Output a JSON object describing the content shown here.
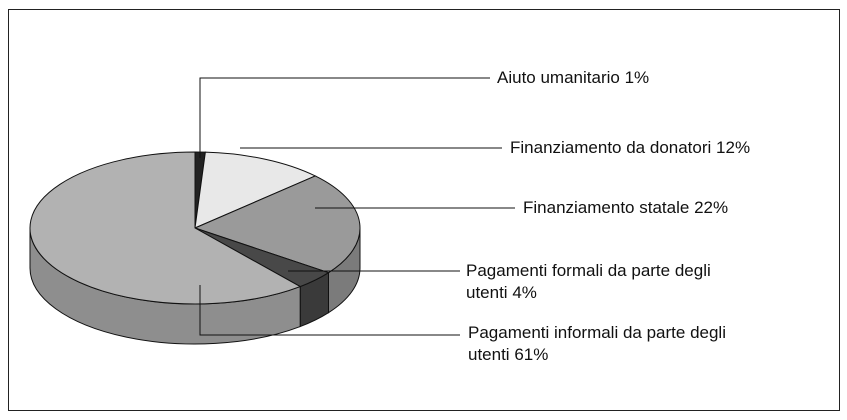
{
  "chart_data": {
    "type": "pie",
    "categories": [
      "Aiuto umanitario",
      "Finanziamento da donatori",
      "Finanziamento statale",
      "Pagamenti formali da parte degli utenti",
      "Pagamenti informali da parte degli utenti"
    ],
    "values": [
      1,
      12,
      22,
      4,
      61
    ],
    "value_labels": [
      "1%",
      "12%",
      "22%",
      "4%",
      "61%"
    ],
    "colors": [
      "#222222",
      "#e8e8e8",
      "#9a9a9a",
      "#484848",
      "#b2b2b2"
    ]
  }
}
